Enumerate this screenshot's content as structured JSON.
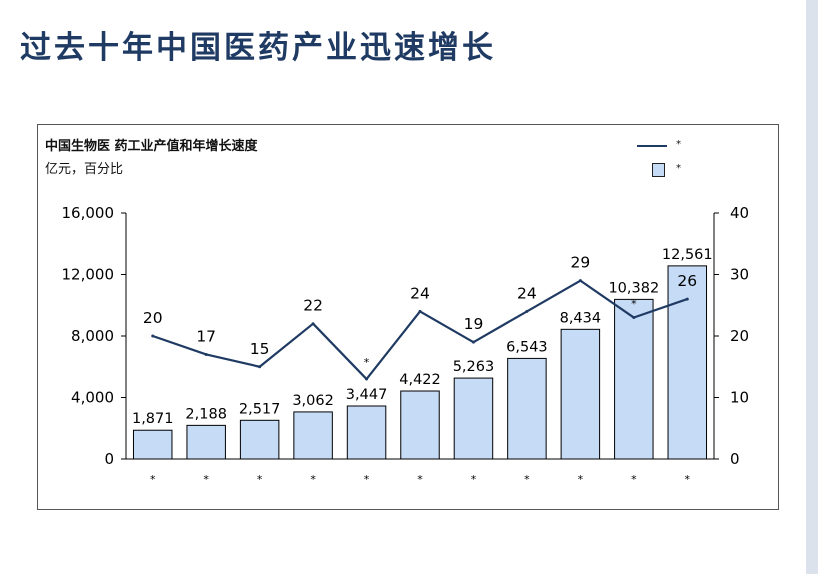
{
  "slide": {
    "title": "过去十年中国医药产业迅速增长"
  },
  "chart_data": {
    "type": "bar",
    "title": "中国生物医 药工业产值和年增长速度",
    "unit_label": "亿元，百分比",
    "categories": [
      "*",
      "*",
      "*",
      "*",
      "*",
      "*",
      "*",
      "*",
      "*",
      "*",
      "*"
    ],
    "series": [
      {
        "type": "bar",
        "name": "*",
        "axis": "left",
        "color": "#c6dbf5",
        "values": [
          1871,
          2188,
          2517,
          3062,
          3447,
          4422,
          5263,
          6543,
          8434,
          10382,
          12561
        ],
        "labels": [
          "1,871",
          "2,188",
          "2,517",
          "3,062",
          "3,447",
          "4,422",
          "5,263",
          "6,543",
          "8,434",
          "10,382",
          "12,561"
        ]
      },
      {
        "type": "line",
        "name": "*",
        "axis": "right",
        "color": "#1f3a63",
        "values": [
          20,
          17,
          15,
          22,
          13,
          24,
          19,
          24,
          29,
          23,
          26
        ],
        "labels": [
          "20",
          "17",
          "15",
          "22",
          "*",
          "24",
          "19",
          "24",
          "29",
          "*",
          "26"
        ]
      }
    ],
    "y_left": {
      "min": 0,
      "max": 16000,
      "ticks": [
        "0",
        "4,000",
        "8,000",
        "12,000",
        "16,000"
      ]
    },
    "y_right": {
      "min": 0,
      "max": 40,
      "ticks": [
        "0",
        "10",
        "20",
        "30",
        "40"
      ]
    },
    "legend_position": "top-right",
    "grid": false
  }
}
